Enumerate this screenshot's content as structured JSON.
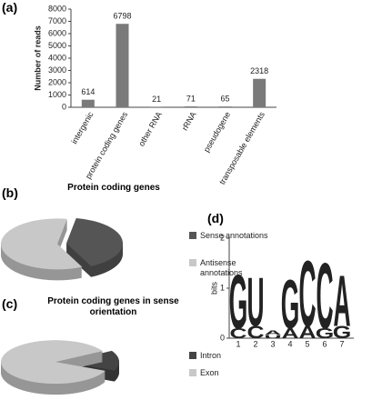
{
  "chart_data": [
    {
      "type": "bar",
      "panel": "(a)",
      "y_label": "Number of reads",
      "categories": [
        "intergenic",
        "protein coding genes",
        "other RNA",
        "rRNA",
        "pseudogene",
        "transposable elements"
      ],
      "values": [
        614,
        6798,
        21,
        71,
        65,
        2318
      ],
      "color": "#7a7a7a",
      "ylim": [
        0,
        8000
      ],
      "yticks": [
        0,
        1000,
        2000,
        3000,
        4000,
        5000,
        6000,
        7000,
        8000
      ]
    },
    {
      "type": "pie",
      "panel": "(b)",
      "title": "Protein coding genes",
      "labels": [
        "Sense annotations",
        "Antisense annotations"
      ],
      "values": [
        40,
        60
      ],
      "colors": [
        "#555555",
        "#c8c8c8"
      ]
    },
    {
      "type": "pie",
      "panel": "(c)",
      "title": "Protein coding genes in sense orientation",
      "labels": [
        "Intron",
        "Exon"
      ],
      "values": [
        15,
        85
      ],
      "colors": [
        "#444444",
        "#c8c8c8"
      ]
    },
    {
      "type": "logo",
      "panel": "(d)",
      "y_label": "bits",
      "ylim": [
        0,
        2
      ],
      "yticks": [
        0,
        1,
        2
      ],
      "categories": [
        "1",
        "2",
        "3",
        "4",
        "5",
        "6",
        "7"
      ],
      "stacks": [
        [
          {
            "letter": "C",
            "bits": 0.2
          },
          {
            "letter": "G",
            "bits": 1.1
          }
        ],
        [
          {
            "letter": "C",
            "bits": 0.25
          },
          {
            "letter": "U",
            "bits": 1.0
          }
        ],
        [
          {
            "letter": "U",
            "bits": 0.06
          },
          {
            "letter": "A",
            "bits": 0.1
          }
        ],
        [
          {
            "letter": "A",
            "bits": 0.2
          },
          {
            "letter": "G",
            "bits": 1.0
          }
        ],
        [
          {
            "letter": "A",
            "bits": 0.25
          },
          {
            "letter": "C",
            "bits": 1.35
          }
        ],
        [
          {
            "letter": "G",
            "bits": 0.2
          },
          {
            "letter": "C",
            "bits": 1.35
          }
        ],
        [
          {
            "letter": "G",
            "bits": 0.25
          },
          {
            "letter": "A",
            "bits": 1.05
          }
        ]
      ],
      "letter_colors": {
        "G": "#aaaaaa",
        "U": "#999999",
        "C": "#111111",
        "A": "#555555"
      }
    }
  ]
}
